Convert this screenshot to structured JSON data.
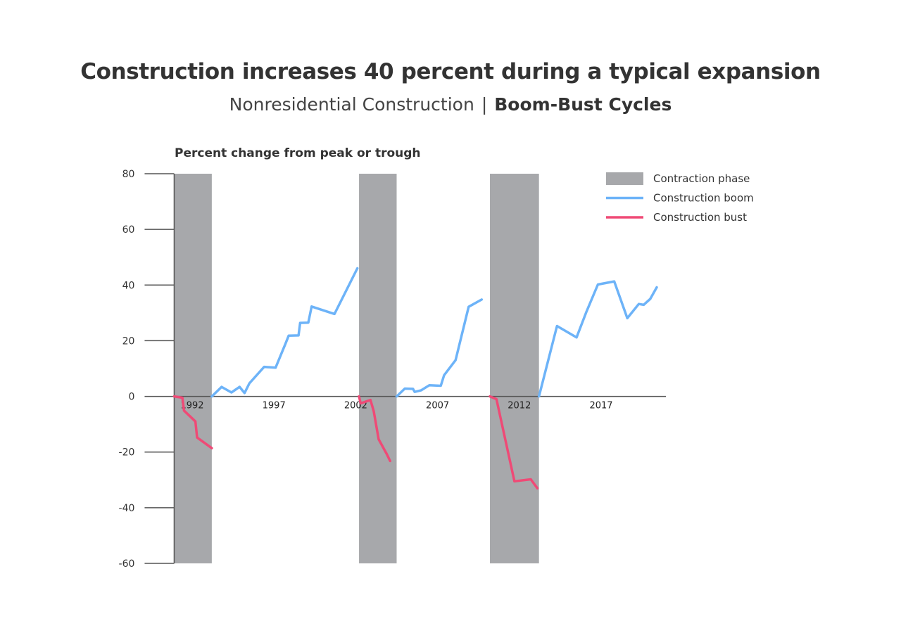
{
  "chart_data": {
    "type": "line",
    "title": "Construction increases 40 percent during a typical expansion",
    "subtitle": {
      "left": "Nonresidential Construction",
      "separator": "|",
      "right": "Boom-Bust Cycles"
    },
    "ylabel": "Percent change from peak or trough",
    "xlabel": "",
    "xlim": [
      1991.0,
      2021.5
    ],
    "ylim": [
      -60,
      80
    ],
    "y_ticks": [
      "80",
      "60",
      "40",
      "20",
      "0",
      "-20",
      "-40",
      "-60"
    ],
    "x_ticks": [
      "1992",
      "1997",
      "2002",
      "2007",
      "2012",
      "2017"
    ],
    "grid": false,
    "legend_position": "top-right",
    "colors": {
      "contraction": "#a7a8ab",
      "boom": "#6db3f8",
      "bust": "#ef4a76",
      "axis": "#555555"
    },
    "legend": [
      {
        "label": "Contraction phase",
        "kind": "box",
        "color": "#a7a8ab"
      },
      {
        "label": "Construction boom",
        "kind": "line",
        "color": "#6db3f8"
      },
      {
        "label": "Construction bust",
        "kind": "line",
        "color": "#ef4a76"
      }
    ],
    "contraction_phases": [
      {
        "start": 1991.0,
        "end": 1993.3
      },
      {
        "start": 2002.3,
        "end": 2004.6
      },
      {
        "start": 2010.3,
        "end": 2013.3
      }
    ],
    "series": [
      {
        "name": "Construction boom",
        "color": "#6db3f8",
        "segments": [
          {
            "x": [
              1993.3,
              1993.9,
              1994.5,
              1995.0,
              1995.3,
              1995.6,
              1996.5,
              1997.2,
              1997.8,
              1998.0,
              1998.6,
              1998.7,
              1999.2,
              1999.4,
              2000.8,
              2002.2
            ],
            "y": [
              0,
              3.4,
              1.4,
              3.4,
              1.2,
              4.7,
              10.6,
              10.3,
              18.9,
              21.8,
              21.9,
              26.4,
              26.5,
              32.3,
              29.6,
              46.0
            ]
          },
          {
            "x": [
              2004.6,
              2005.1,
              2005.6,
              2005.7,
              2006.1,
              2006.6,
              2007.3,
              2007.5,
              2008.2,
              2009.0,
              2009.8
            ],
            "y": [
              0,
              2.8,
              2.7,
              1.6,
              2.2,
              4.0,
              3.8,
              7.6,
              13.0,
              32.2,
              34.8
            ]
          },
          {
            "x": [
              2013.3,
              2014.4,
              2015.6,
              2016.2,
              2016.9,
              2017.9,
              2018.7,
              2019.4,
              2019.7,
              2020.1,
              2020.5
            ],
            "y": [
              0,
              25.3,
              21.2,
              30.4,
              40.2,
              41.3,
              28.1,
              33.2,
              32.9,
              35.0,
              39.2
            ]
          }
        ]
      },
      {
        "name": "Construction bust",
        "color": "#ef4a76",
        "segments": [
          {
            "x": [
              1991.0,
              1991.5,
              1991.6,
              1992.3,
              1992.4,
              1993.3
            ],
            "y": [
              0,
              -0.5,
              -5.1,
              -9.0,
              -14.8,
              -18.6
            ]
          },
          {
            "x": [
              2002.3,
              2002.4,
              2003.0,
              2003.2,
              2003.5,
              2004.0,
              2004.2
            ],
            "y": [
              0,
              -2.5,
              -1.3,
              -5.4,
              -15.4,
              -20.8,
              -23.2
            ]
          },
          {
            "x": [
              2010.3,
              2010.7,
              2011.8,
              2012.8,
              2013.2
            ],
            "y": [
              0,
              -1.0,
              -30.5,
              -29.8,
              -33.0
            ]
          }
        ]
      }
    ]
  }
}
